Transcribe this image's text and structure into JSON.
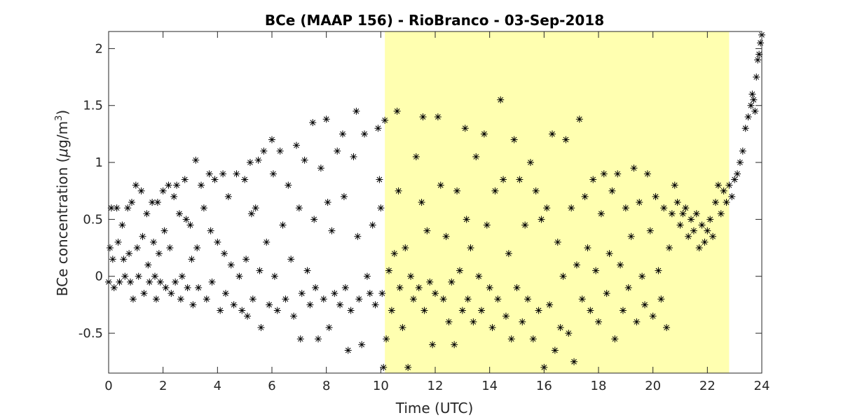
{
  "chart_data": {
    "type": "scatter",
    "title": "BCe (MAAP 156) - RioBranco - 03-Sep-2018",
    "xlabel": "Time (UTC)",
    "ylabel_main": "BCe concentration (",
    "ylabel_mu": "μ",
    "ylabel_unit": "g/m",
    "ylabel_sup": "3",
    "ylabel_close": ")",
    "xlim": [
      0,
      24
    ],
    "ylim": [
      -0.85,
      2.15
    ],
    "xticks": [
      0,
      2,
      4,
      6,
      8,
      10,
      12,
      14,
      16,
      18,
      20,
      22,
      24
    ],
    "xtick_labels": [
      "0",
      "2",
      "4",
      "6",
      "8",
      "10",
      "12",
      "14",
      "16",
      "18",
      "20",
      "22",
      "24"
    ],
    "yticks": [
      -0.5,
      0,
      0.5,
      1,
      1.5,
      2
    ],
    "ytick_labels": [
      "-0.5",
      "0",
      "0.5",
      "1",
      "1.5",
      "2"
    ],
    "grid": false,
    "marker": "asterisk",
    "marker_color": "#000000",
    "shaded_region": {
      "x_start": 10.15,
      "x_end": 22.8,
      "color": "#ffffb0"
    },
    "series": [
      {
        "points": [
          [
            0.0,
            -0.05
          ],
          [
            0.05,
            0.25
          ],
          [
            0.1,
            0.6
          ],
          [
            0.15,
            0.15
          ],
          [
            0.2,
            -0.1
          ],
          [
            0.3,
            0.6
          ],
          [
            0.35,
            0.3
          ],
          [
            0.4,
            -0.05
          ],
          [
            0.5,
            0.45
          ],
          [
            0.55,
            0.15
          ],
          [
            0.6,
            0.0
          ],
          [
            0.7,
            0.6
          ],
          [
            0.75,
            0.2
          ],
          [
            0.8,
            -0.05
          ],
          [
            0.85,
            0.65
          ],
          [
            0.9,
            -0.2
          ],
          [
            1.0,
            0.8
          ],
          [
            1.05,
            0.25
          ],
          [
            1.1,
            0.0
          ],
          [
            1.2,
            0.75
          ],
          [
            1.25,
            0.35
          ],
          [
            1.3,
            -0.15
          ],
          [
            1.4,
            0.55
          ],
          [
            1.45,
            0.1
          ],
          [
            1.5,
            -0.05
          ],
          [
            1.6,
            0.65
          ],
          [
            1.65,
            0.3
          ],
          [
            1.7,
            0.0
          ],
          [
            1.75,
            -0.2
          ],
          [
            1.8,
            0.65
          ],
          [
            1.85,
            0.2
          ],
          [
            1.9,
            -0.05
          ],
          [
            2.0,
            0.75
          ],
          [
            2.05,
            0.4
          ],
          [
            2.1,
            -0.1
          ],
          [
            2.2,
            0.8
          ],
          [
            2.25,
            0.25
          ],
          [
            2.3,
            -0.15
          ],
          [
            2.4,
            0.7
          ],
          [
            2.45,
            -0.05
          ],
          [
            2.5,
            0.8
          ],
          [
            2.6,
            0.55
          ],
          [
            2.65,
            -0.2
          ],
          [
            2.7,
            0.0
          ],
          [
            2.8,
            0.85
          ],
          [
            2.85,
            0.5
          ],
          [
            2.9,
            -0.1
          ],
          [
            3.0,
            0.45
          ],
          [
            3.05,
            0.15
          ],
          [
            3.1,
            -0.25
          ],
          [
            3.2,
            1.02
          ],
          [
            3.25,
            0.25
          ],
          [
            3.3,
            -0.1
          ],
          [
            3.4,
            0.8
          ],
          [
            3.5,
            0.6
          ],
          [
            3.6,
            -0.2
          ],
          [
            3.7,
            0.9
          ],
          [
            3.75,
            0.4
          ],
          [
            3.8,
            -0.05
          ],
          [
            3.9,
            0.85
          ],
          [
            4.0,
            0.3
          ],
          [
            4.1,
            -0.3
          ],
          [
            4.2,
            0.9
          ],
          [
            4.25,
            0.2
          ],
          [
            4.3,
            -0.15
          ],
          [
            4.4,
            0.7
          ],
          [
            4.5,
            0.1
          ],
          [
            4.6,
            -0.25
          ],
          [
            4.7,
            0.9
          ],
          [
            4.8,
            0.0
          ],
          [
            4.9,
            -0.3
          ],
          [
            5.0,
            0.85
          ],
          [
            5.05,
            0.15
          ],
          [
            5.1,
            -0.35
          ],
          [
            5.2,
            1.0
          ],
          [
            5.25,
            0.55
          ],
          [
            5.3,
            -0.2
          ],
          [
            5.4,
            0.6
          ],
          [
            5.5,
            1.02
          ],
          [
            5.55,
            0.05
          ],
          [
            5.6,
            -0.45
          ],
          [
            5.7,
            1.1
          ],
          [
            5.8,
            0.3
          ],
          [
            5.9,
            -0.25
          ],
          [
            6.0,
            1.2
          ],
          [
            6.05,
            0.9
          ],
          [
            6.1,
            0.0
          ],
          [
            6.2,
            -0.3
          ],
          [
            6.3,
            1.1
          ],
          [
            6.4,
            0.45
          ],
          [
            6.5,
            -0.2
          ],
          [
            6.6,
            0.8
          ],
          [
            6.7,
            0.15
          ],
          [
            6.8,
            -0.35
          ],
          [
            6.9,
            1.15
          ],
          [
            7.0,
            0.6
          ],
          [
            7.05,
            -0.55
          ],
          [
            7.1,
            -0.15
          ],
          [
            7.2,
            1.02
          ],
          [
            7.3,
            0.05
          ],
          [
            7.4,
            -0.25
          ],
          [
            7.5,
            1.35
          ],
          [
            7.55,
            0.5
          ],
          [
            7.6,
            -0.1
          ],
          [
            7.7,
            -0.55
          ],
          [
            7.8,
            0.95
          ],
          [
            7.9,
            -0.2
          ],
          [
            8.0,
            1.38
          ],
          [
            8.05,
            0.65
          ],
          [
            8.1,
            -0.45
          ],
          [
            8.2,
            0.4
          ],
          [
            8.3,
            -0.15
          ],
          [
            8.4,
            1.1
          ],
          [
            8.5,
            -0.25
          ],
          [
            8.6,
            1.25
          ],
          [
            8.65,
            0.7
          ],
          [
            8.7,
            -0.1
          ],
          [
            8.8,
            -0.65
          ],
          [
            8.9,
            -0.3
          ],
          [
            9.0,
            1.05
          ],
          [
            9.1,
            1.45
          ],
          [
            9.15,
            0.35
          ],
          [
            9.2,
            -0.2
          ],
          [
            9.3,
            -0.6
          ],
          [
            9.4,
            1.25
          ],
          [
            9.5,
            0.0
          ],
          [
            9.6,
            -0.15
          ],
          [
            9.7,
            0.45
          ],
          [
            9.8,
            -0.25
          ],
          [
            9.9,
            1.3
          ],
          [
            9.95,
            0.85
          ],
          [
            10.0,
            0.6
          ],
          [
            10.05,
            -0.15
          ],
          [
            10.1,
            -0.8
          ],
          [
            10.15,
            1.37
          ],
          [
            10.2,
            -0.55
          ],
          [
            10.3,
            0.05
          ],
          [
            10.4,
            -0.3
          ],
          [
            10.5,
            0.2
          ],
          [
            10.6,
            1.45
          ],
          [
            10.65,
            0.75
          ],
          [
            10.7,
            -0.1
          ],
          [
            10.8,
            -0.45
          ],
          [
            10.9,
            0.25
          ],
          [
            11.0,
            -0.8
          ],
          [
            11.1,
            0.0
          ],
          [
            11.2,
            -0.2
          ],
          [
            11.3,
            1.05
          ],
          [
            11.4,
            -0.1
          ],
          [
            11.5,
            0.65
          ],
          [
            11.55,
            1.4
          ],
          [
            11.6,
            -0.3
          ],
          [
            11.7,
            0.4
          ],
          [
            11.8,
            -0.05
          ],
          [
            11.9,
            -0.6
          ],
          [
            12.0,
            -0.15
          ],
          [
            12.1,
            1.4
          ],
          [
            12.2,
            0.8
          ],
          [
            12.3,
            -0.2
          ],
          [
            12.4,
            0.35
          ],
          [
            12.5,
            -0.4
          ],
          [
            12.6,
            -0.05
          ],
          [
            12.7,
            -0.6
          ],
          [
            12.8,
            0.75
          ],
          [
            12.9,
            0.05
          ],
          [
            13.0,
            -0.3
          ],
          [
            13.1,
            1.3
          ],
          [
            13.15,
            0.5
          ],
          [
            13.2,
            -0.2
          ],
          [
            13.3,
            0.25
          ],
          [
            13.4,
            -0.4
          ],
          [
            13.5,
            1.05
          ],
          [
            13.6,
            0.0
          ],
          [
            13.7,
            -0.3
          ],
          [
            13.8,
            1.25
          ],
          [
            13.9,
            0.45
          ],
          [
            14.0,
            -0.1
          ],
          [
            14.1,
            -0.45
          ],
          [
            14.2,
            0.75
          ],
          [
            14.3,
            -0.2
          ],
          [
            14.4,
            1.55
          ],
          [
            14.5,
            0.85
          ],
          [
            14.6,
            -0.35
          ],
          [
            14.7,
            0.2
          ],
          [
            14.8,
            -0.55
          ],
          [
            14.9,
            1.2
          ],
          [
            15.0,
            -0.1
          ],
          [
            15.1,
            0.85
          ],
          [
            15.2,
            -0.4
          ],
          [
            15.3,
            0.45
          ],
          [
            15.4,
            -0.2
          ],
          [
            15.5,
            1.0
          ],
          [
            15.6,
            -0.55
          ],
          [
            15.7,
            0.75
          ],
          [
            15.8,
            -0.3
          ],
          [
            15.9,
            0.5
          ],
          [
            16.0,
            -0.8
          ],
          [
            16.1,
            0.6
          ],
          [
            16.2,
            -0.25
          ],
          [
            16.3,
            1.25
          ],
          [
            16.4,
            -0.65
          ],
          [
            16.5,
            0.3
          ],
          [
            16.6,
            -0.45
          ],
          [
            16.7,
            0.0
          ],
          [
            16.8,
            1.2
          ],
          [
            16.9,
            -0.5
          ],
          [
            17.0,
            0.6
          ],
          [
            17.1,
            -0.75
          ],
          [
            17.2,
            0.1
          ],
          [
            17.3,
            1.38
          ],
          [
            17.4,
            -0.2
          ],
          [
            17.5,
            0.7
          ],
          [
            17.6,
            0.25
          ],
          [
            17.7,
            -0.3
          ],
          [
            17.8,
            0.85
          ],
          [
            17.9,
            0.05
          ],
          [
            18.0,
            -0.4
          ],
          [
            18.1,
            0.55
          ],
          [
            18.2,
            0.9
          ],
          [
            18.3,
            -0.15
          ],
          [
            18.4,
            0.2
          ],
          [
            18.5,
            0.75
          ],
          [
            18.6,
            -0.55
          ],
          [
            18.7,
            0.9
          ],
          [
            18.8,
            0.1
          ],
          [
            18.9,
            -0.3
          ],
          [
            19.0,
            0.6
          ],
          [
            19.1,
            -0.1
          ],
          [
            19.2,
            0.35
          ],
          [
            19.3,
            0.95
          ],
          [
            19.4,
            -0.4
          ],
          [
            19.5,
            0.65
          ],
          [
            19.6,
            0.0
          ],
          [
            19.7,
            -0.25
          ],
          [
            19.8,
            0.9
          ],
          [
            19.9,
            0.4
          ],
          [
            20.0,
            -0.35
          ],
          [
            20.1,
            0.7
          ],
          [
            20.2,
            0.05
          ],
          [
            20.3,
            -0.2
          ],
          [
            20.4,
            0.6
          ],
          [
            20.5,
            -0.45
          ],
          [
            20.6,
            0.25
          ],
          [
            20.7,
            0.55
          ],
          [
            20.8,
            0.8
          ],
          [
            20.9,
            0.65
          ],
          [
            21.0,
            0.45
          ],
          [
            21.1,
            0.55
          ],
          [
            21.2,
            0.6
          ],
          [
            21.3,
            0.35
          ],
          [
            21.4,
            0.5
          ],
          [
            21.5,
            0.4
          ],
          [
            21.6,
            0.55
          ],
          [
            21.7,
            0.25
          ],
          [
            21.8,
            0.45
          ],
          [
            21.9,
            0.3
          ],
          [
            22.0,
            0.4
          ],
          [
            22.1,
            0.5
          ],
          [
            22.2,
            0.35
          ],
          [
            22.3,
            0.65
          ],
          [
            22.4,
            0.8
          ],
          [
            22.5,
            0.55
          ],
          [
            22.6,
            0.75
          ],
          [
            22.7,
            0.65
          ],
          [
            22.8,
            0.8
          ],
          [
            22.9,
            0.7
          ],
          [
            23.0,
            0.85
          ],
          [
            23.1,
            0.9
          ],
          [
            23.2,
            1.0
          ],
          [
            23.3,
            1.1
          ],
          [
            23.4,
            1.3
          ],
          [
            23.5,
            1.4
          ],
          [
            23.6,
            1.5
          ],
          [
            23.65,
            1.6
          ],
          [
            23.7,
            1.55
          ],
          [
            23.75,
            1.45
          ],
          [
            23.8,
            1.75
          ],
          [
            23.85,
            1.9
          ],
          [
            23.9,
            1.95
          ],
          [
            23.95,
            2.05
          ],
          [
            24.0,
            2.12
          ]
        ]
      }
    ]
  }
}
